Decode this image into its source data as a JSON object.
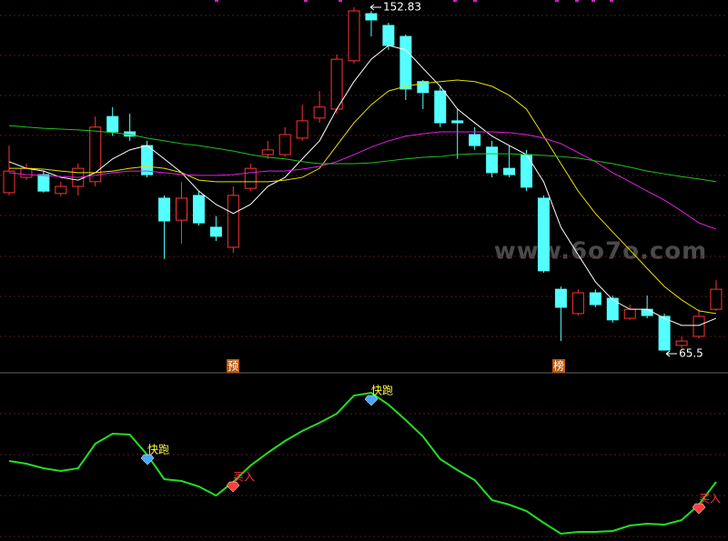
{
  "chart_data": {
    "type": "candlestick",
    "ylim": [
      59.72,
      154.68
    ],
    "ohlc": [
      [
        105.6,
        111.1,
        117.6,
        104.9
      ],
      [
        109.5,
        111.8,
        113.0,
        108.8
      ],
      [
        110.2,
        106.0,
        111.1,
        105.6
      ],
      [
        105.4,
        107.2,
        108.4,
        104.7
      ],
      [
        107.2,
        111.8,
        113.0,
        104.9
      ],
      [
        108.4,
        122.3,
        125.0,
        107.2
      ],
      [
        125.0,
        121.1,
        127.4,
        120.0
      ],
      [
        121.1,
        120.0,
        125.7,
        118.8
      ],
      [
        117.6,
        110.2,
        118.8,
        109.5
      ],
      [
        104.2,
        98.4,
        104.9,
        88.7
      ],
      [
        98.6,
        104.2,
        108.4,
        92.6
      ],
      [
        104.9,
        97.9,
        106.0,
        97.2
      ],
      [
        96.8,
        94.5,
        99.6,
        93.3
      ],
      [
        91.7,
        104.9,
        107.2,
        90.3
      ],
      [
        106.7,
        111.8,
        113.0,
        106.0
      ],
      [
        115.3,
        116.5,
        118.8,
        114.2
      ],
      [
        115.3,
        120.4,
        122.3,
        114.8
      ],
      [
        119.5,
        123.9,
        128.0,
        118.8
      ],
      [
        124.6,
        127.4,
        131.5,
        123.4
      ],
      [
        126.9,
        139.6,
        140.8,
        125.7
      ],
      [
        139.2,
        151.9,
        152.83,
        138.5
      ],
      [
        151.2,
        149.6,
        151.9,
        145.4
      ],
      [
        148.2,
        143.1,
        148.9,
        142.0
      ],
      [
        145.4,
        132.0,
        145.9,
        129.2
      ],
      [
        133.9,
        131.1,
        134.3,
        126.9
      ],
      [
        131.5,
        123.4,
        132.7,
        122.3
      ],
      [
        123.9,
        123.4,
        126.9,
        114.2
      ],
      [
        120.4,
        117.6,
        122.3,
        116.5
      ],
      [
        117.2,
        110.7,
        118.8,
        109.5
      ],
      [
        111.8,
        110.2,
        117.6,
        109.5
      ],
      [
        115.3,
        107.0,
        116.5,
        106.0
      ],
      [
        104.2,
        85.7,
        104.9,
        85.2
      ],
      [
        81.0,
        76.4,
        81.7,
        67.8
      ],
      [
        74.8,
        80.1,
        81.0,
        74.3
      ],
      [
        80.1,
        77.1,
        81.0,
        76.4
      ],
      [
        78.7,
        73.2,
        79.4,
        72.5
      ],
      [
        73.6,
        75.9,
        77.1,
        73.2
      ],
      [
        75.9,
        74.3,
        79.4,
        73.6
      ],
      [
        74.1,
        65.5,
        74.8,
        65.5
      ],
      [
        66.7,
        67.8,
        69.0,
        66.0
      ],
      [
        69.0,
        74.1,
        75.9,
        68.5
      ],
      [
        75.9,
        81.0,
        83.3,
        75.5
      ]
    ],
    "up_color": "#ff3232",
    "down_color": "#54ffff",
    "series": [
      {
        "color": "#ffffff",
        "values": [
          113.5,
          111.8,
          111.1,
          109.5,
          108.8,
          110.7,
          114.2,
          116.5,
          117.6,
          114.2,
          110.7,
          106.0,
          102.6,
          100.3,
          102.6,
          107.2,
          109.5,
          114.2,
          118.8,
          126.9,
          133.9,
          139.6,
          143.1,
          142.0,
          137.3,
          132.7,
          126.9,
          123.4,
          120.0,
          117.6,
          115.3,
          108.4,
          96.8,
          89.8,
          82.9,
          78.3,
          75.9,
          75.9,
          73.6,
          71.8,
          71.8,
          73.6
        ]
      },
      {
        "color": "#e8e000",
        "values": [
          111.8,
          111.8,
          111.6,
          111.1,
          110.7,
          110.7,
          111.1,
          111.8,
          112.3,
          111.8,
          110.7,
          108.8,
          108.4,
          108.4,
          108.4,
          108.4,
          108.8,
          109.5,
          111.8,
          117.6,
          123.4,
          128.0,
          131.5,
          132.7,
          133.4,
          133.9,
          134.3,
          133.9,
          132.7,
          130.4,
          126.9,
          120.0,
          113.0,
          106.0,
          100.3,
          95.6,
          91.0,
          86.3,
          81.7,
          78.3,
          75.5,
          74.8
        ]
      },
      {
        "color": "#e020e0",
        "values": [
          110.7,
          110.2,
          110.0,
          109.7,
          109.5,
          110.0,
          110.7,
          111.1,
          111.1,
          110.7,
          110.2,
          110.0,
          110.0,
          110.2,
          110.7,
          111.1,
          111.1,
          111.6,
          112.3,
          113.5,
          115.3,
          117.2,
          118.8,
          120.0,
          120.6,
          121.1,
          121.1,
          121.1,
          121.1,
          120.9,
          120.4,
          119.5,
          118.1,
          115.8,
          113.5,
          110.7,
          108.4,
          106.0,
          103.7,
          100.9,
          97.9,
          96.3
        ]
      },
      {
        "color": "#20c020",
        "values": [
          122.7,
          122.3,
          122.0,
          121.8,
          121.6,
          121.3,
          120.9,
          120.4,
          119.5,
          118.8,
          118.1,
          117.6,
          116.9,
          116.2,
          115.3,
          114.6,
          114.2,
          113.5,
          113.0,
          113.0,
          113.0,
          113.2,
          113.7,
          114.2,
          114.6,
          114.8,
          115.3,
          115.5,
          115.5,
          115.5,
          115.3,
          115.1,
          114.8,
          114.4,
          113.7,
          113.0,
          112.1,
          111.1,
          110.4,
          109.7,
          109.1,
          108.4
        ]
      }
    ],
    "max_price": 152.83,
    "min_price": 65.5,
    "markers": [
      "预",
      "榜"
    ],
    "indicator": {
      "type": "line",
      "color": "#22dd22",
      "ylim": [
        0,
        185
      ],
      "values": [
        88,
        85,
        80,
        77,
        80,
        107,
        118,
        117,
        95,
        68,
        66,
        60,
        50,
        65,
        83,
        97,
        110,
        121,
        130,
        140,
        160,
        163,
        150,
        133,
        115,
        90,
        78,
        67,
        45,
        40,
        33,
        20,
        8,
        10,
        10,
        11,
        17,
        19,
        18,
        23,
        40,
        65
      ],
      "signals": [
        "快跑",
        "快跑",
        "买入",
        "买入"
      ]
    },
    "watermark": "www.6o7o.com"
  }
}
